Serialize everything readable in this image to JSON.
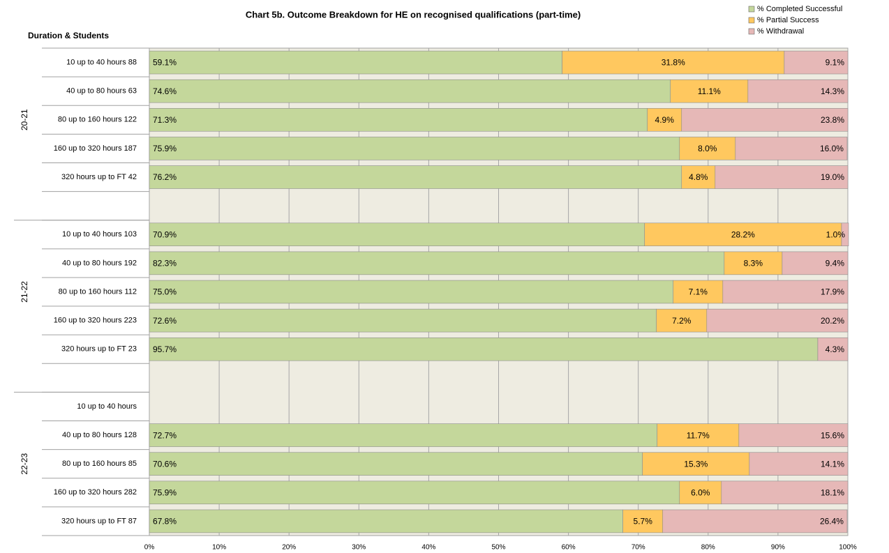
{
  "chart_data": {
    "type": "stacked_bar_horizontal",
    "title": "Chart 5b. Outcome Breakdown for HE on recognised qualifications (part-time)",
    "y_axis_label": "Duration & Students",
    "groups": [
      "20-21",
      "21-22",
      "22-23"
    ],
    "categories": [
      "10 up to 40 hours  88",
      "40 up to 80 hours  63",
      "80 up to 160 hours  122",
      "160 up to 320 hours  187",
      "320 hours up to FT  42",
      null,
      "10 up to 40 hours  103",
      "40 up to 80 hours  192",
      "80 up to 160 hours  112",
      "160 up to 320 hours  223",
      "320 hours up to FT  23",
      null,
      "10 up to 40 hours",
      "40 up to 80 hours  128",
      "80 up to 160 hours  85",
      "160 up to 320 hours  282",
      "320 hours up to FT  87"
    ],
    "series": [
      {
        "name": "% Completed Successful",
        "color": "#c4d79b",
        "values": [
          59.1,
          74.6,
          71.3,
          75.9,
          76.2,
          null,
          70.9,
          82.3,
          75.0,
          72.6,
          95.7,
          null,
          null,
          72.7,
          70.6,
          75.9,
          67.8
        ],
        "value_labels": [
          "59.1%",
          "74.6%",
          "71.3%",
          "75.9%",
          "76.2%",
          null,
          "70.9%",
          "82.3%",
          "75.0%",
          "72.6%",
          "95.7%",
          null,
          null,
          "72.7%",
          "70.6%",
          "75.9%",
          "67.8%"
        ]
      },
      {
        "name": "% Partial Success",
        "color": "#ffc85f",
        "values": [
          31.8,
          11.1,
          4.9,
          8.0,
          4.8,
          null,
          28.2,
          8.3,
          7.1,
          7.2,
          null,
          null,
          null,
          11.7,
          15.3,
          6.0,
          5.7
        ],
        "value_labels": [
          "31.8%",
          "11.1%",
          "4.9%",
          "8.0%",
          "4.8%",
          null,
          "28.2%",
          "8.3%",
          "7.1%",
          "7.2%",
          null,
          null,
          null,
          "11.7%",
          "15.3%",
          "6.0%",
          "5.7%"
        ]
      },
      {
        "name": "% Withdrawal",
        "color": "#e6b8b7",
        "values": [
          9.1,
          14.3,
          23.8,
          16.0,
          19.0,
          null,
          1.0,
          9.4,
          17.9,
          20.2,
          4.3,
          null,
          null,
          15.6,
          14.1,
          18.1,
          26.4
        ],
        "value_labels": [
          "9.1%",
          "14.3%",
          "23.8%",
          "16.0%",
          "19.0%",
          null,
          "1.0%",
          "9.4%",
          "17.9%",
          "20.2%",
          "4.3%",
          null,
          null,
          "15.6%",
          "14.1%",
          "18.1%",
          "26.4%"
        ]
      }
    ],
    "xlim": [
      0,
      100
    ],
    "xticks": [
      {
        "value": 0,
        "label": "0%"
      },
      {
        "value": 10,
        "label": "10%"
      },
      {
        "value": 20,
        "label": "20%"
      },
      {
        "value": 30,
        "label": "30%"
      },
      {
        "value": 40,
        "label": "40%"
      },
      {
        "value": 50,
        "label": "50%"
      },
      {
        "value": 60,
        "label": "60%"
      },
      {
        "value": 70,
        "label": "70%"
      },
      {
        "value": 80,
        "label": "80%"
      },
      {
        "value": 90,
        "label": "90%"
      },
      {
        "value": 100,
        "label": "100%"
      }
    ],
    "grid": true,
    "legend": "top-right"
  }
}
